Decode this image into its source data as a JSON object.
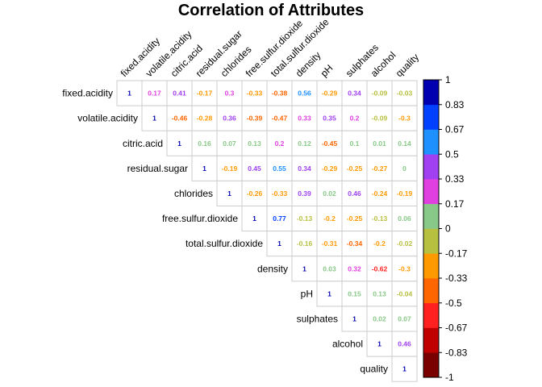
{
  "chart_data": {
    "type": "heatmap",
    "title": "Correlation of Attributes",
    "variables": [
      "fixed.acidity",
      "volatile.acidity",
      "citric.acid",
      "residual.sugar",
      "chlorides",
      "free.sulfur.dioxide",
      "total.sulfur.dioxide",
      "density",
      "pH",
      "sulphates",
      "alcohol",
      "quality"
    ],
    "matrix_upper": [
      [
        "1",
        "0.17",
        "0.41",
        "-0.17",
        "0.3",
        "-0.33",
        "-0.38",
        "0.56",
        "-0.29",
        "0.34",
        "-0.09",
        "-0.03"
      ],
      [
        "1",
        "-0.46",
        "-0.28",
        "0.36",
        "-0.39",
        "-0.47",
        "0.33",
        "0.35",
        "0.2",
        "-0.09",
        "-0.3"
      ],
      [
        "1",
        "0.16",
        "0.07",
        "0.13",
        "0.2",
        "0.12",
        "-0.45",
        "0.1",
        "0.01",
        "0.14"
      ],
      [
        "1",
        "-0.19",
        "0.45",
        "0.55",
        "0.34",
        "-0.29",
        "-0.25",
        "-0.27",
        "0"
      ],
      [
        "1",
        "-0.26",
        "-0.33",
        "0.39",
        "0.02",
        "0.46",
        "-0.24",
        "-0.19"
      ],
      [
        "1",
        "0.77",
        "-0.13",
        "-0.2",
        "-0.25",
        "-0.13",
        "0.06"
      ],
      [
        "1",
        "-0.16",
        "-0.31",
        "-0.34",
        "-0.2",
        "-0.02"
      ],
      [
        "1",
        "0.03",
        "0.32",
        "-0.62",
        "-0.3"
      ],
      [
        "1",
        "0.15",
        "0.13",
        "-0.04"
      ],
      [
        "1",
        "0.02",
        "0.07"
      ],
      [
        "1",
        "0.46"
      ],
      [
        "1"
      ]
    ],
    "colorbar": {
      "ticks": [
        "1",
        "0.83",
        "0.67",
        "0.5",
        "0.33",
        "0.17",
        "0",
        "-0.17",
        "-0.33",
        "-0.5",
        "-0.67",
        "-0.83",
        "-1"
      ],
      "range": [
        -1,
        1
      ],
      "colors": [
        "#7a0000",
        "#c00000",
        "#ff2020",
        "#ff6600",
        "#ff9900",
        "#b8c040",
        "#88c888",
        "#e040e0",
        "#a040f0",
        "#1e90ff",
        "#0040ff",
        "#0000b0"
      ]
    },
    "grid": true
  }
}
